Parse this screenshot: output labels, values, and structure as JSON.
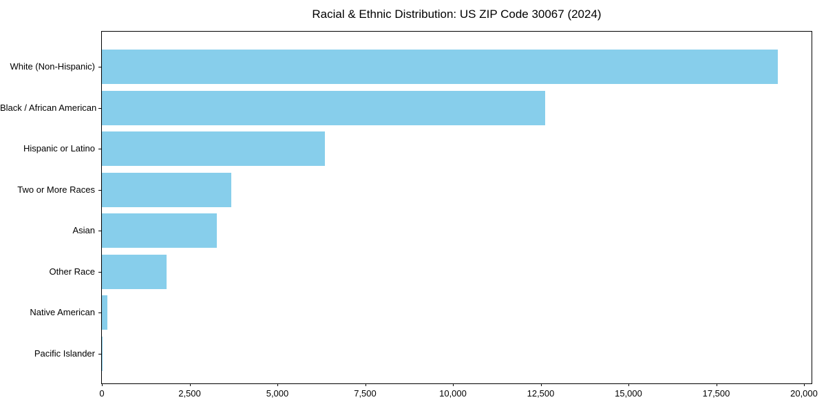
{
  "chart_data": {
    "type": "bar",
    "orientation": "horizontal",
    "title": "Racial & Ethnic Distribution: US ZIP Code 30067 (2024)",
    "categories": [
      "White (Non-Hispanic)",
      "Black / African American",
      "Hispanic or Latino",
      "Two or More Races",
      "Asian",
      "Other Race",
      "Native American",
      "Pacific Islander"
    ],
    "values": [
      19250,
      12620,
      6360,
      3690,
      3280,
      1850,
      165,
      10
    ],
    "xlabel": "",
    "ylabel": "",
    "xlim": [
      0,
      20000
    ],
    "xticks": [
      0,
      2500,
      5000,
      7500,
      10000,
      12500,
      15000,
      17500,
      20000
    ],
    "xtick_labels": [
      "0",
      "2,500",
      "5,000",
      "7,500",
      "10,000",
      "12,500",
      "15,000",
      "17,500",
      "20,000"
    ],
    "grid": false,
    "legend": false,
    "bar_color": "#87CEEB"
  },
  "colors": {
    "bar": "#87CEEB",
    "text": "#000000",
    "spine": "#000000",
    "background": "#FFFFFF"
  }
}
